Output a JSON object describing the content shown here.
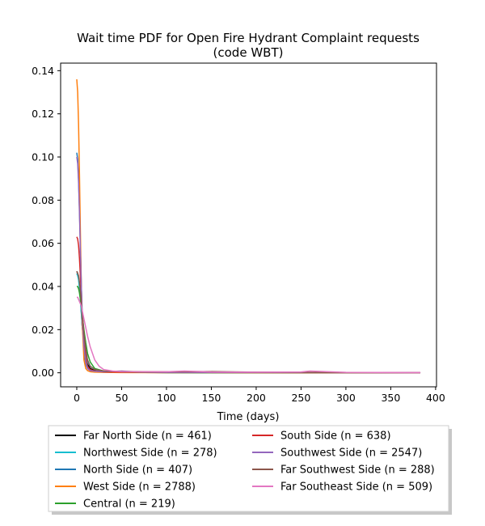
{
  "chart_data": {
    "type": "line",
    "title": "Wait time PDF for Open Fire Hydrant Complaint  requests",
    "subtitle": "(code WBT)",
    "xlabel": "Time (days)",
    "ylabel": "",
    "xlim": [
      -18,
      401
    ],
    "ylim": [
      -0.0065,
      0.1435
    ],
    "xticks": [
      0,
      50,
      100,
      150,
      200,
      250,
      300,
      350,
      400
    ],
    "xtick_labels": [
      "0",
      "50",
      "100",
      "150",
      "200",
      "250",
      "300",
      "350",
      "400"
    ],
    "yticks": [
      0.0,
      0.02,
      0.04,
      0.06,
      0.08,
      0.1,
      0.12,
      0.14
    ],
    "ytick_labels": [
      "0.00",
      "0.02",
      "0.04",
      "0.06",
      "0.08",
      "0.10",
      "0.12",
      "0.14"
    ],
    "grid": false,
    "legend_location": "below plot, two columns, with shadow",
    "series": [
      {
        "name": "Far North Side (n = 461)",
        "color": "#000000",
        "x": [
          0,
          1,
          2,
          3,
          4,
          5,
          6,
          8,
          10,
          12,
          15,
          20,
          30,
          50,
          100,
          200,
          300,
          383
        ],
        "y": [
          0.047,
          0.046,
          0.044,
          0.04,
          0.035,
          0.029,
          0.022,
          0.013,
          0.007,
          0.004,
          0.002,
          0.001,
          0.0004,
          0.0002,
          0.0001,
          5e-05,
          2e-05,
          1e-05
        ]
      },
      {
        "name": "Northwest Side (n = 278)",
        "color": "#17becf",
        "x": [
          0,
          1,
          2,
          3,
          4,
          5,
          6,
          8,
          10,
          12,
          15,
          20,
          30,
          50,
          100,
          200,
          300,
          383
        ],
        "y": [
          0.046,
          0.045,
          0.043,
          0.039,
          0.034,
          0.028,
          0.022,
          0.014,
          0.008,
          0.005,
          0.003,
          0.0015,
          0.0006,
          0.0003,
          0.0001,
          5e-05,
          2e-05,
          1e-05
        ]
      },
      {
        "name": "North Side (n = 407)",
        "color": "#1f77b4",
        "x": [
          0,
          1,
          2,
          3,
          4,
          5,
          6,
          8,
          10,
          12,
          15,
          20,
          30,
          50,
          100,
          200,
          300,
          383
        ],
        "y": [
          0.102,
          0.099,
          0.09,
          0.076,
          0.059,
          0.042,
          0.027,
          0.01,
          0.004,
          0.002,
          0.001,
          0.0006,
          0.0003,
          0.0002,
          0.0001,
          5e-05,
          2e-05,
          1e-05
        ]
      },
      {
        "name": "West Side (n = 2788)",
        "color": "#ff7f0e",
        "x": [
          0,
          1,
          2,
          3,
          4,
          5,
          6,
          8,
          10,
          12,
          15,
          20,
          30,
          50,
          100,
          200,
          300,
          383
        ],
        "y": [
          0.136,
          0.13,
          0.115,
          0.092,
          0.066,
          0.042,
          0.024,
          0.006,
          0.002,
          0.001,
          0.0005,
          0.0003,
          0.0002,
          0.0001,
          5e-05,
          3e-05,
          2e-05,
          1e-05
        ]
      },
      {
        "name": "Central (n = 219)",
        "color": "#2ca02c",
        "x": [
          0,
          1,
          2,
          3,
          4,
          5,
          6,
          8,
          10,
          12,
          15,
          20,
          30,
          50,
          100,
          200,
          300,
          383
        ],
        "y": [
          0.04,
          0.04,
          0.039,
          0.037,
          0.034,
          0.031,
          0.027,
          0.02,
          0.014,
          0.009,
          0.005,
          0.002,
          0.0008,
          0.0003,
          0.0001,
          5e-05,
          2e-05,
          1e-05
        ]
      },
      {
        "name": "South Side (n = 638)",
        "color": "#d62728",
        "x": [
          0,
          1,
          2,
          3,
          4,
          5,
          6,
          8,
          10,
          12,
          15,
          20,
          30,
          50,
          100,
          200,
          300,
          383
        ],
        "y": [
          0.063,
          0.062,
          0.059,
          0.053,
          0.045,
          0.036,
          0.027,
          0.014,
          0.007,
          0.003,
          0.0015,
          0.0008,
          0.0004,
          0.0003,
          0.0002,
          0.0001,
          5e-05,
          2e-05
        ]
      },
      {
        "name": "Southwest Side (n = 2547)",
        "color": "#9467bd",
        "x": [
          0,
          1,
          2,
          3,
          4,
          5,
          6,
          8,
          10,
          12,
          15,
          20,
          30,
          50,
          60,
          70,
          100,
          200,
          300,
          383
        ],
        "y": [
          0.1,
          0.097,
          0.088,
          0.074,
          0.057,
          0.041,
          0.027,
          0.012,
          0.005,
          0.002,
          0.001,
          0.0007,
          0.0005,
          0.0008,
          0.0006,
          0.0004,
          0.0002,
          0.0002,
          0.0001,
          5e-05
        ]
      },
      {
        "name": "Far Southwest Side (n = 288)",
        "color": "#8c564b",
        "x": [
          0,
          1,
          2,
          3,
          4,
          5,
          6,
          8,
          10,
          12,
          15,
          20,
          30,
          50,
          100,
          150,
          200,
          300,
          383
        ],
        "y": [
          0.047,
          0.046,
          0.045,
          0.042,
          0.038,
          0.033,
          0.028,
          0.018,
          0.011,
          0.006,
          0.003,
          0.0015,
          0.0008,
          0.0006,
          0.0005,
          0.0006,
          0.0003,
          0.0001,
          5e-05
        ]
      },
      {
        "name": "Far Southeast Side (n = 509)",
        "color": "#e377c2",
        "x": [
          0,
          1,
          2,
          3,
          4,
          5,
          6,
          8,
          10,
          12,
          15,
          20,
          25,
          30,
          40,
          50,
          100,
          120,
          150,
          200,
          250,
          260,
          300,
          383
        ],
        "y": [
          0.035,
          0.035,
          0.034,
          0.033,
          0.032,
          0.031,
          0.029,
          0.025,
          0.021,
          0.017,
          0.012,
          0.006,
          0.003,
          0.0015,
          0.0008,
          0.0005,
          0.0005,
          0.0008,
          0.0004,
          0.0003,
          0.0004,
          0.0008,
          0.0002,
          0.0001
        ]
      }
    ]
  }
}
